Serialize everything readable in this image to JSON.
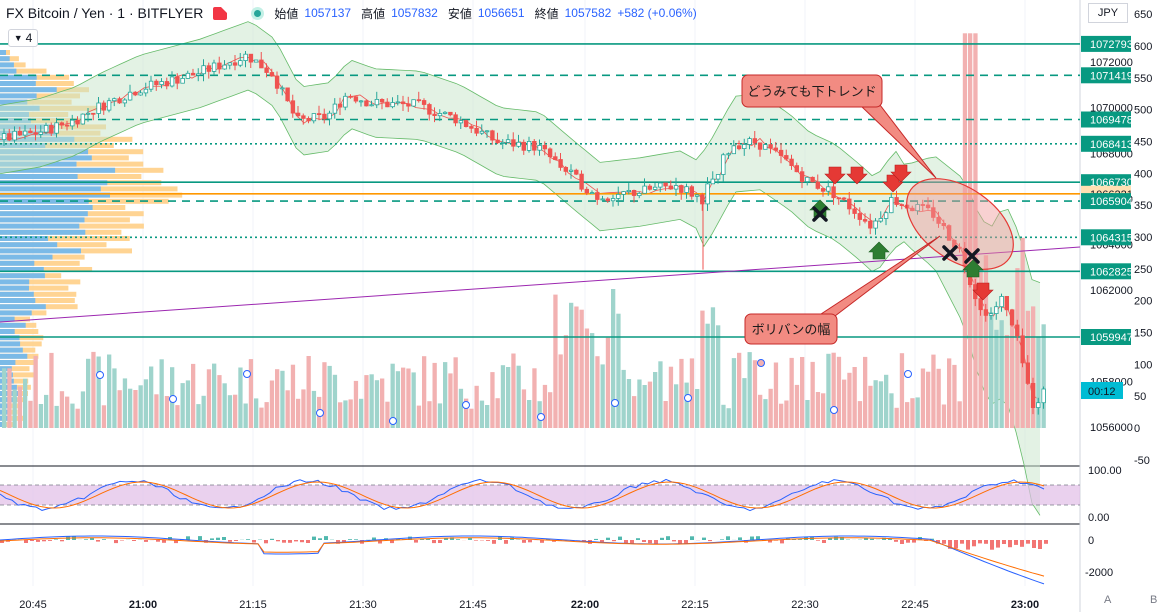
{
  "header": {
    "symbol": "FX Bitcoin / Yen · 1 · BITFLYER",
    "open_label": "始値",
    "open_value": "1057137",
    "high_label": "高値",
    "high_value": "1057832",
    "low_label": "安値",
    "low_value": "1056651",
    "close_label": "終値",
    "close_value": "1057582",
    "change": "+582 (+0.06%)"
  },
  "indicator_collapse_count": "4",
  "currency_label": "JPY",
  "price_axis": {
    "price_labels": [
      "1072000",
      "1070000",
      "1068000",
      "1066000",
      "1064000",
      "1062000",
      "1058000",
      "1056000"
    ],
    "price_values": [
      1072000,
      1070000,
      1068000,
      1066000,
      1064000,
      1062000,
      1058000,
      1056000
    ],
    "volume_labels": [
      "650",
      "600",
      "550",
      "500",
      "450",
      "400",
      "350",
      "300",
      "250",
      "200",
      "150",
      "100",
      "50",
      "0",
      "-50"
    ],
    "volume_values": [
      650,
      600,
      550,
      500,
      450,
      400,
      350,
      300,
      250,
      200,
      150,
      100,
      50,
      0,
      -50
    ]
  },
  "horizontal_levels": [
    {
      "label": "1072793",
      "value": 1072793,
      "style": "solid",
      "color": "#089981"
    },
    {
      "label": "1071419",
      "value": 1071419,
      "style": "dashed",
      "color": "#089981"
    },
    {
      "label": "1069478",
      "value": 1069478,
      "style": "dashed",
      "color": "#089981"
    },
    {
      "label": "1068413",
      "value": 1068413,
      "style": "dotted",
      "color": "#089981"
    },
    {
      "label": "1066730",
      "value": 1066730,
      "style": "solid",
      "color": "#089981"
    },
    {
      "label": "1066221",
      "value": 1066221,
      "style": "solid",
      "color": "#ff9800"
    },
    {
      "label": "1065904",
      "value": 1065904,
      "style": "dashed",
      "color": "#089981"
    },
    {
      "label": "1064315",
      "value": 1064315,
      "style": "dotted",
      "color": "#089981"
    },
    {
      "label": "1062825",
      "value": 1062825,
      "style": "solid",
      "color": "#089981"
    },
    {
      "label": "1059947",
      "value": 1059947,
      "style": "solid",
      "color": "#089981"
    }
  ],
  "countdown_label": "00:12",
  "time_axis": {
    "labels": [
      "20:45",
      "21:00",
      "21:15",
      "21:30",
      "21:45",
      "22:00",
      "22:15",
      "22:30",
      "22:45",
      "23:00"
    ],
    "bold": [
      false,
      true,
      false,
      false,
      false,
      true,
      false,
      false,
      false,
      true
    ]
  },
  "annotations": {
    "callout_top": "どうみても下トレンド",
    "callout_bottom": "ボリバンの幅"
  },
  "oscillator_axis": [
    "100.00",
    "0.00"
  ],
  "macd_axis": [
    "0",
    "-2000"
  ],
  "axis_buttons": {
    "auto": "A",
    "log": "B"
  },
  "colors": {
    "up": "#26a69a",
    "down": "#ef5350",
    "level": "#089981",
    "bb_fill": "#c8e6c9",
    "trendline": "#9c27b0",
    "rsi_band": "#e1bee7",
    "vol_up": "#9fd4cc",
    "vol_down": "#f2b1b1"
  },
  "chart_data": {
    "type": "candlestick",
    "symbol": "FX_BTC_JPY",
    "timeframe": "1m",
    "time_range": [
      "20:40",
      "23:03"
    ],
    "y_range": [
      1055000,
      1074000
    ],
    "last_price": 1057582,
    "indicators": [
      "Bollinger Bands",
      "Volume Profile",
      "Volume",
      "Stochastic RSI",
      "MACD"
    ]
  }
}
